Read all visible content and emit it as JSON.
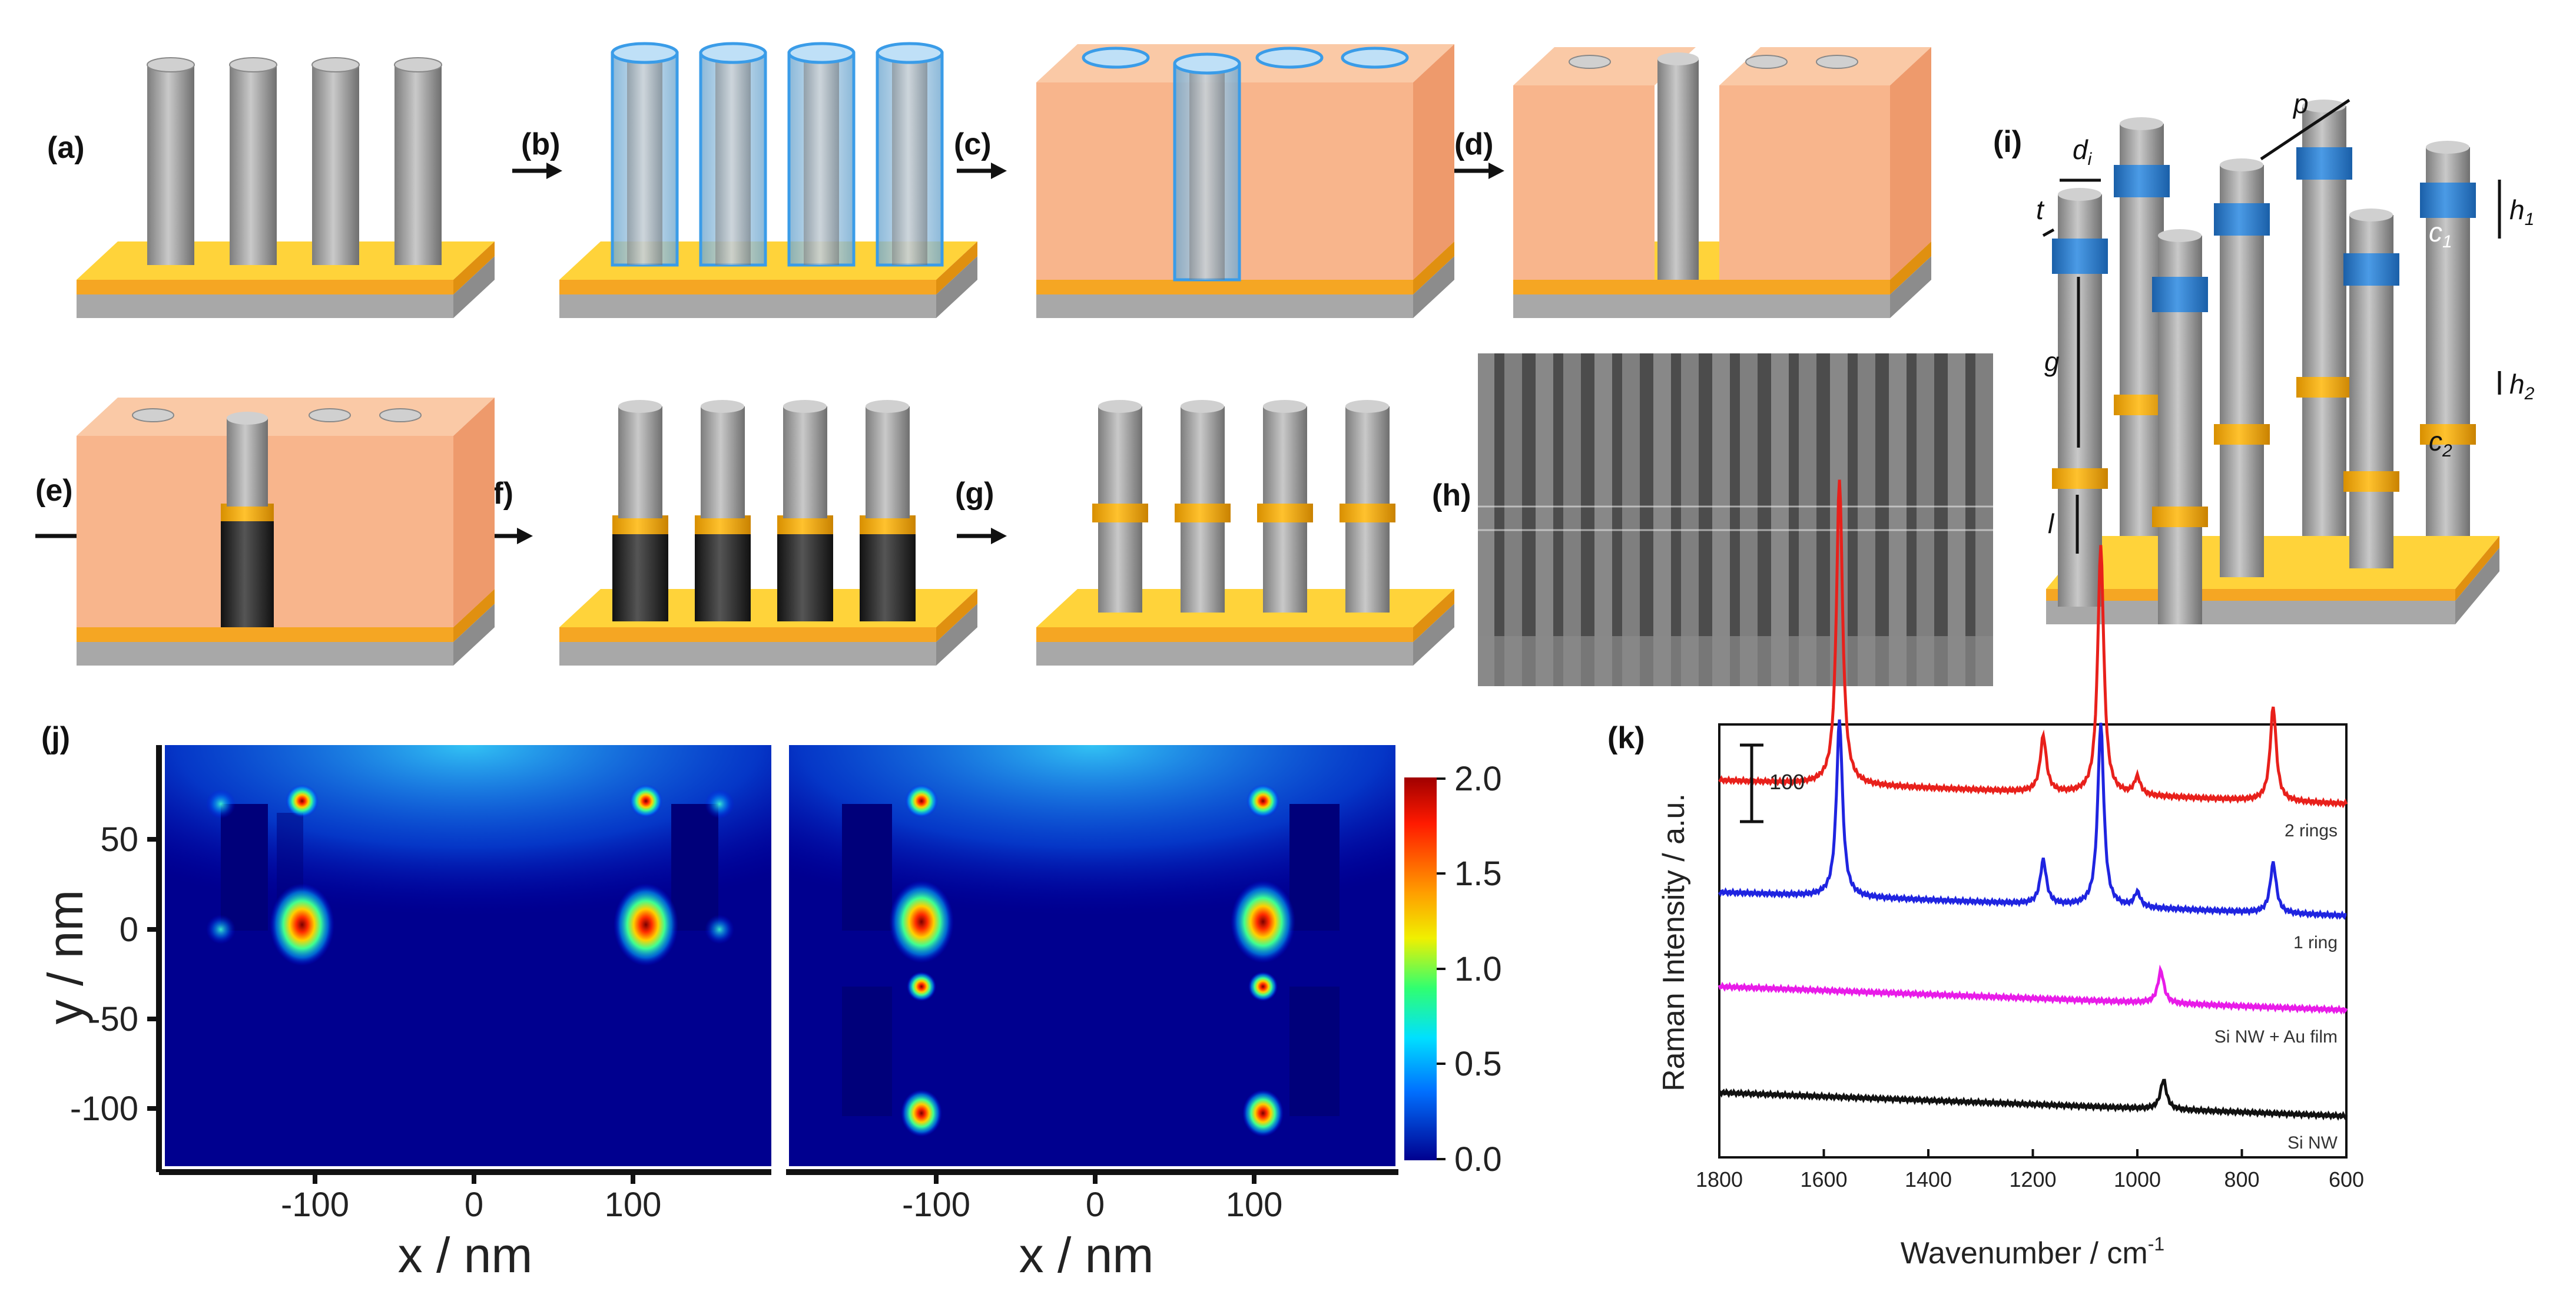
{
  "panel_labels": {
    "a": "(a)",
    "b": "(b)",
    "c": "(c)",
    "d": "(d)",
    "e": "(e)",
    "f": "(f)",
    "g": "(g)",
    "h": "(h)",
    "i": "(i)",
    "j": "(j)",
    "k": "(k)"
  },
  "schematic_i": {
    "di": "d",
    "di_sub": "i",
    "p": "p",
    "t": "t",
    "h1": "h",
    "h1_sub": "1",
    "h2": "h",
    "h2_sub": "2",
    "c1": "c",
    "c1_sub": "1",
    "c2": "c",
    "c2_sub": "2",
    "g": "g",
    "l": "l"
  },
  "colors": {
    "substrate": "#9a9a9a",
    "gold": "#f5b800",
    "wire": "#a6a6a6",
    "resist": "#f7b38a",
    "shell": "#5aa0e0",
    "blue_ring": "#2b7fd4",
    "black": "#2a2a2a"
  },
  "field_maps": {
    "x_ticks": [
      "-100",
      "0",
      "100"
    ],
    "y_ticks": [
      "50",
      "0",
      "-50",
      "-100"
    ],
    "xlabel": "x / nm",
    "ylabel": "y / nm",
    "colorbar_ticks": [
      "2.0",
      "1.5",
      "1.0",
      "0.5",
      "0.0"
    ]
  },
  "chart_data": {
    "type": "line",
    "xlabel": "Wavenumber / cm",
    "xlabel_sup": "-1",
    "ylabel": "Raman Intensity / a.u.",
    "xlim": [
      1800,
      600
    ],
    "x_ticks": [
      "1800",
      "1600",
      "1400",
      "1200",
      "1000",
      "800",
      "600"
    ],
    "scale_bar": "100",
    "series": [
      {
        "name": "2 rings",
        "color": "#e8201b",
        "baseline": 560,
        "peaks": [
          [
            1570,
            520
          ],
          [
            1180,
            95
          ],
          [
            1070,
            420
          ],
          [
            740,
            160
          ],
          [
            1000,
            30
          ]
        ]
      },
      {
        "name": "1 ring",
        "color": "#1f24e0",
        "baseline": 370,
        "peaks": [
          [
            1570,
            300
          ],
          [
            1180,
            75
          ],
          [
            1070,
            310
          ],
          [
            740,
            85
          ],
          [
            1000,
            25
          ]
        ]
      },
      {
        "name": "Si NW + Au film",
        "color": "#e81be8",
        "baseline": 210,
        "peaks": [
          [
            955,
            55
          ]
        ]
      },
      {
        "name": "Si NW",
        "color": "#111111",
        "baseline": 30,
        "peaks": [
          [
            950,
            50
          ]
        ]
      }
    ]
  }
}
